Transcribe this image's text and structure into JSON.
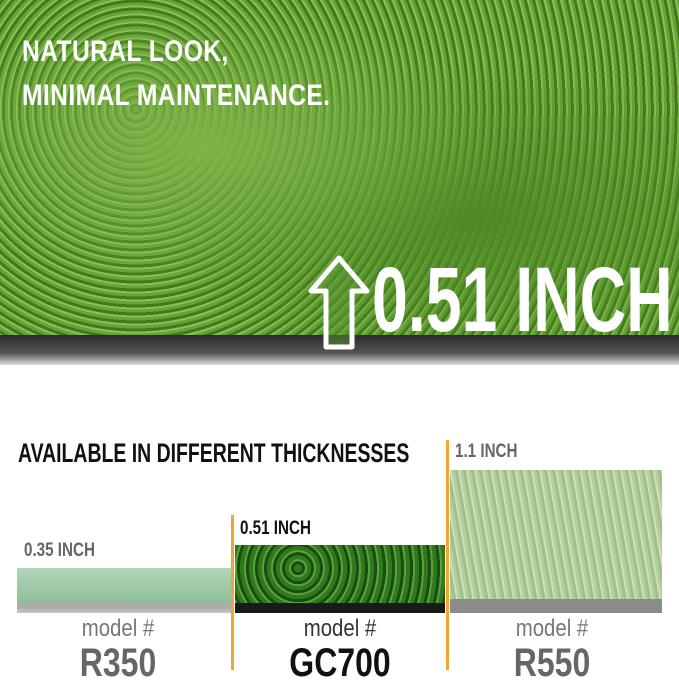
{
  "hero": {
    "title_line1": "NATURAL LOOK,",
    "title_line2": "MINIMAL MAINTENANCE.",
    "height_label": "0.51 INCH",
    "icon": "up-arrow-icon"
  },
  "comparison": {
    "title": "AVAILABLE IN DIFFERENT THICKNESSES",
    "accent_color": "#f0a630",
    "models": [
      {
        "thickness": "0.35 INCH",
        "model_label": "model #",
        "model": "R350",
        "selected": false
      },
      {
        "thickness": "0.51 INCH",
        "model_label": "model #",
        "model": "GC700",
        "selected": true
      },
      {
        "thickness": "1.1 INCH",
        "model_label": "model #",
        "model": "R550",
        "selected": false
      }
    ]
  }
}
